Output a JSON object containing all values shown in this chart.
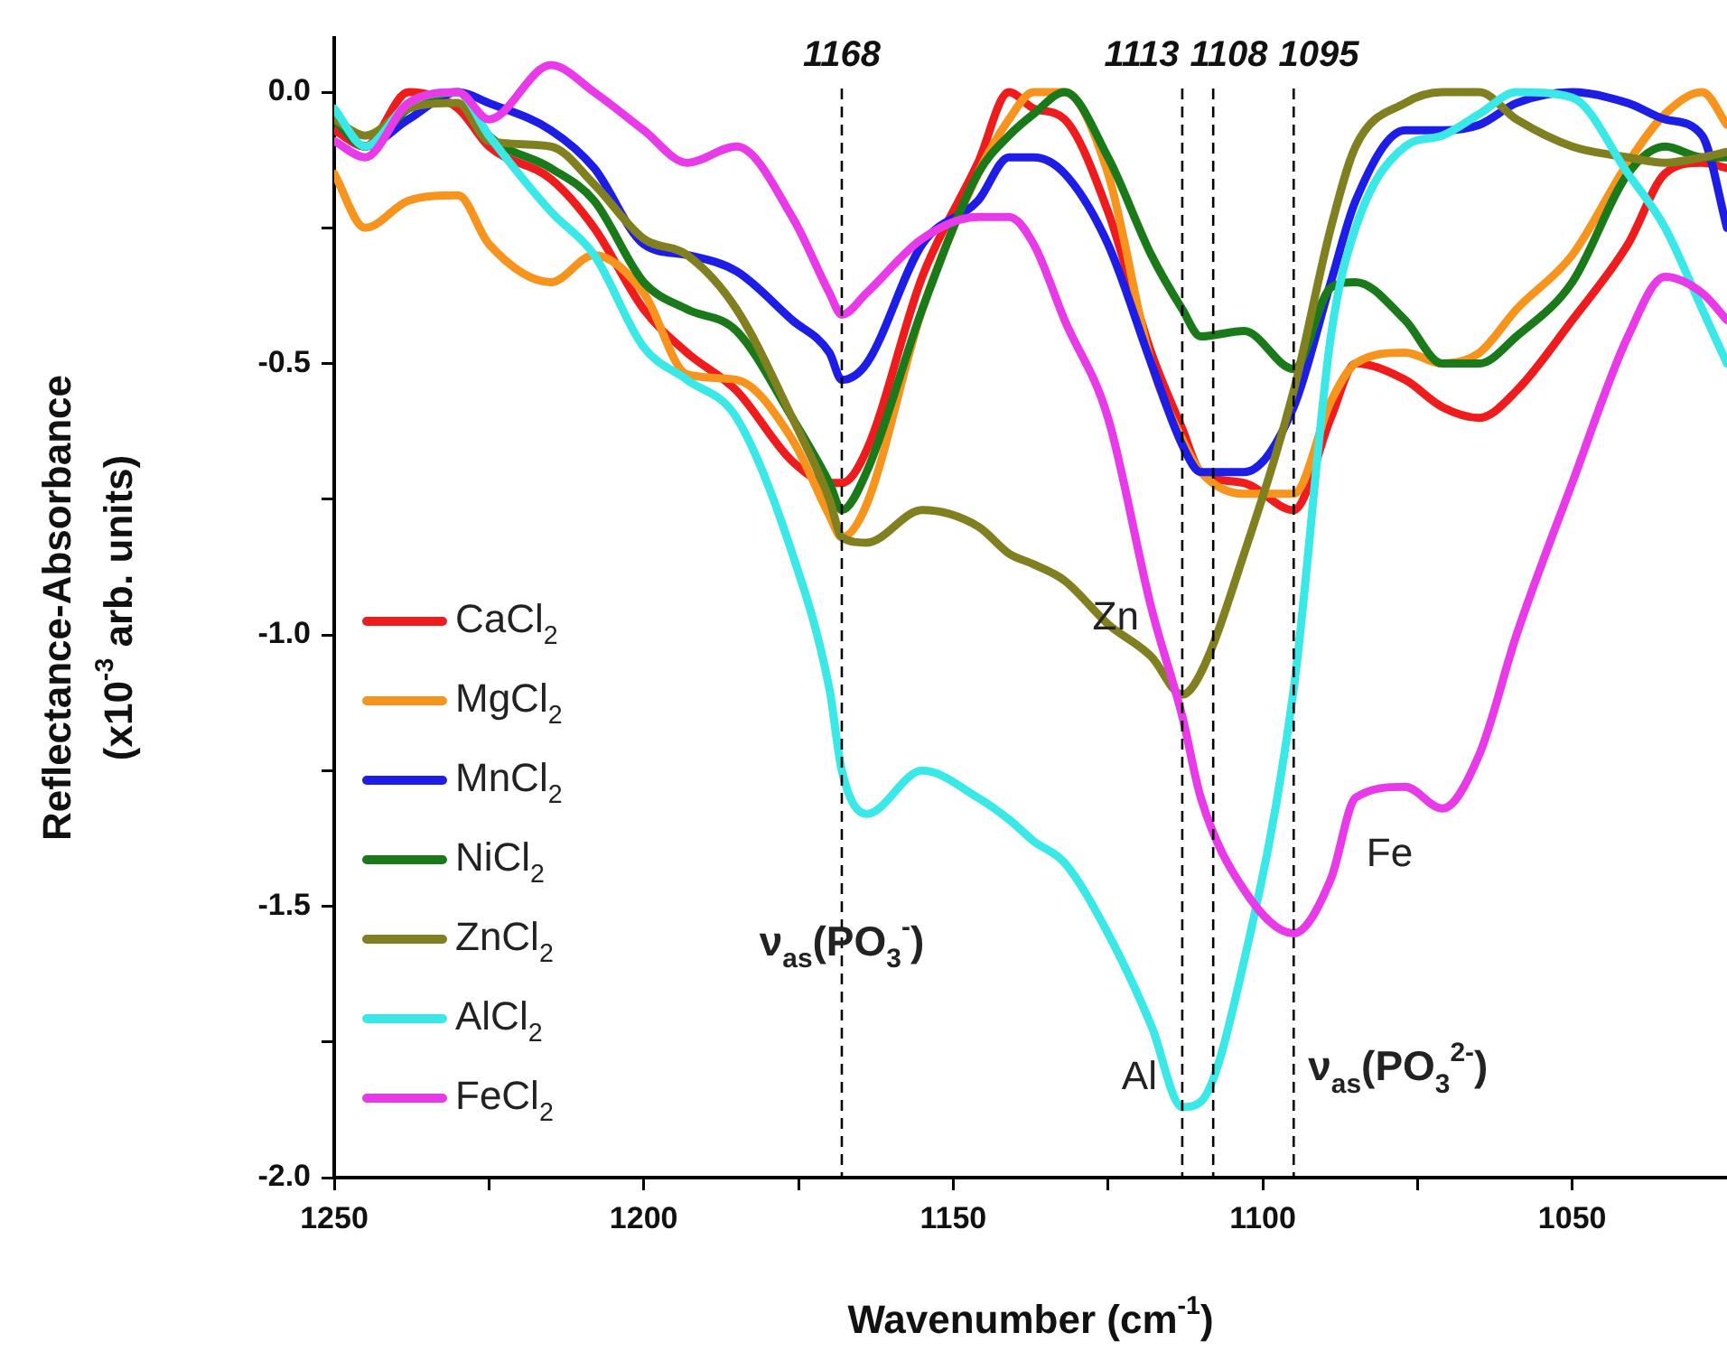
{
  "chart_data": {
    "type": "line",
    "xlabel": "Wavenumber (cm$^{-1}$)",
    "ylabel": "Reflectance-Absorbance\n(x10$^{-3}$ arb. units)",
    "x": [
      1250,
      1245,
      1238,
      1230,
      1225,
      1215,
      1208,
      1200,
      1193,
      1185,
      1176,
      1170,
      1168,
      1164,
      1155,
      1146,
      1141,
      1137,
      1132,
      1125,
      1118,
      1113,
      1110,
      1103,
      1095,
      1089,
      1085,
      1077,
      1071,
      1065,
      1059,
      1050,
      1041,
      1035,
      1029,
      1025
    ],
    "series": [
      {
        "name": "CaCl$_{2}$",
        "color": "#ee1c1c",
        "values": [
          -0.07,
          -0.1,
          0.0,
          -0.03,
          -0.1,
          -0.16,
          -0.25,
          -0.4,
          -0.48,
          -0.55,
          -0.68,
          -0.72,
          -0.72,
          -0.66,
          -0.34,
          -0.13,
          0.0,
          -0.03,
          -0.05,
          -0.22,
          -0.48,
          -0.62,
          -0.7,
          -0.72,
          -0.77,
          -0.6,
          -0.5,
          -0.53,
          -0.58,
          -0.6,
          -0.55,
          -0.42,
          -0.28,
          -0.15,
          -0.13,
          -0.14
        ]
      },
      {
        "name": "MgCl$_{2}$",
        "color": "#f7941d",
        "values": [
          -0.15,
          -0.25,
          -0.2,
          -0.19,
          -0.28,
          -0.35,
          -0.3,
          -0.37,
          -0.52,
          -0.53,
          -0.64,
          -0.78,
          -0.82,
          -0.76,
          -0.4,
          -0.15,
          -0.05,
          0.0,
          0.0,
          -0.15,
          -0.5,
          -0.64,
          -0.7,
          -0.74,
          -0.74,
          -0.57,
          -0.5,
          -0.48,
          -0.5,
          -0.48,
          -0.4,
          -0.3,
          -0.13,
          -0.04,
          0.0,
          -0.06
        ]
      },
      {
        "name": "MnCl$_{2}$",
        "color": "#1d1de6",
        "values": [
          -0.05,
          -0.1,
          -0.05,
          0.0,
          -0.02,
          -0.07,
          -0.14,
          -0.28,
          -0.3,
          -0.33,
          -0.42,
          -0.48,
          -0.53,
          -0.5,
          -0.28,
          -0.2,
          -0.12,
          -0.12,
          -0.15,
          -0.28,
          -0.5,
          -0.65,
          -0.7,
          -0.7,
          -0.58,
          -0.35,
          -0.2,
          -0.07,
          -0.07,
          -0.06,
          -0.02,
          0.0,
          -0.02,
          -0.05,
          -0.08,
          -0.25
        ]
      },
      {
        "name": "NiCl$_{2}$",
        "color": "#1a7a1a",
        "values": [
          -0.05,
          -0.1,
          -0.03,
          0.0,
          -0.08,
          -0.14,
          -0.2,
          -0.35,
          -0.4,
          -0.44,
          -0.6,
          -0.72,
          -0.77,
          -0.7,
          -0.4,
          -0.15,
          -0.08,
          -0.04,
          0.0,
          -0.12,
          -0.3,
          -0.4,
          -0.45,
          -0.44,
          -0.51,
          -0.36,
          -0.35,
          -0.42,
          -0.5,
          -0.5,
          -0.45,
          -0.35,
          -0.15,
          -0.1,
          -0.12,
          -0.12
        ]
      },
      {
        "name": "ZnCl$_{2}$",
        "color": "#808020",
        "values": [
          -0.05,
          -0.08,
          -0.03,
          -0.02,
          -0.09,
          -0.1,
          -0.17,
          -0.27,
          -0.3,
          -0.4,
          -0.6,
          -0.75,
          -0.82,
          -0.83,
          -0.77,
          -0.8,
          -0.85,
          -0.87,
          -0.9,
          -0.98,
          -1.04,
          -1.11,
          -1.07,
          -0.85,
          -0.55,
          -0.25,
          -0.1,
          -0.02,
          0.0,
          0.0,
          -0.05,
          -0.1,
          -0.12,
          -0.13,
          -0.12,
          -0.11
        ]
      },
      {
        "name": "AlCl$_{2}$",
        "color": "#3ae8e8",
        "values": [
          -0.03,
          -0.1,
          -0.02,
          0.0,
          -0.08,
          -0.22,
          -0.3,
          -0.47,
          -0.53,
          -0.6,
          -0.85,
          -1.1,
          -1.25,
          -1.33,
          -1.25,
          -1.3,
          -1.34,
          -1.38,
          -1.42,
          -1.55,
          -1.72,
          -1.87,
          -1.86,
          -1.6,
          -1.1,
          -0.45,
          -0.25,
          -0.1,
          -0.08,
          -0.04,
          0.0,
          -0.01,
          -0.15,
          -0.25,
          -0.4,
          -0.5
        ]
      },
      {
        "name": "FeCl$_{2}$",
        "color": "#e83ae8",
        "values": [
          -0.09,
          -0.12,
          -0.02,
          0.0,
          -0.05,
          0.05,
          0.0,
          -0.07,
          -0.13,
          -0.1,
          -0.23,
          -0.37,
          -0.41,
          -0.37,
          -0.27,
          -0.23,
          -0.23,
          -0.28,
          -0.42,
          -0.6,
          -0.95,
          -1.15,
          -1.3,
          -1.47,
          -1.55,
          -1.45,
          -1.3,
          -1.28,
          -1.32,
          -1.22,
          -1.0,
          -0.72,
          -0.45,
          -0.34,
          -0.37,
          -0.42
        ]
      }
    ],
    "xlim": [
      1250,
      1025
    ],
    "xticks": [
      1250,
      {
        "value": 1225,
        "label": null
      },
      1200,
      {
        "value": 1175,
        "label": null
      },
      1150,
      {
        "value": 1125,
        "label": null
      },
      1100,
      {
        "value": 1075,
        "label": null
      },
      1050
    ],
    "ylim": [
      -2.0,
      0.1
    ],
    "yticks": [
      {
        "value": -2,
        "label": "-2.0"
      },
      {
        "value": -1.75,
        "label": null
      },
      -1.5,
      {
        "value": -1.25,
        "label": null
      },
      {
        "value": -1,
        "label": "-1.0"
      },
      {
        "value": -0.75,
        "label": null
      },
      -0.5,
      {
        "value": -0.25,
        "label": null
      },
      {
        "value": 0,
        "label": "0.0"
      }
    ],
    "ref_lines": [
      {
        "axis": "x",
        "value": 1168,
        "label": "1168",
        "line_style": "dashed"
      },
      {
        "axis": "x",
        "value": 1113,
        "label": "1113",
        "line_style": "dashed"
      },
      {
        "axis": "x",
        "value": 1108,
        "label": "1108",
        "line_style": "dashed"
      },
      {
        "axis": "x",
        "value": 1095,
        "label": "1095",
        "line_style": "dashed"
      }
    ],
    "annotations": [
      {
        "text": "Zn",
        "x": 1113,
        "y": -1.11
      },
      {
        "text": "Al",
        "x": 1113,
        "y": -1.87
      },
      {
        "text": "Fe",
        "x": 1085,
        "y": -1.3
      },
      {
        "text": "ν$_{as}$(PO$_{3}$$^{-}$)",
        "x": 1168,
        "y": -1.57
      },
      {
        "text": "ν$_{as}$(PO$_{3}$$^{2-}$)",
        "x": 1095,
        "y": -1.8
      }
    ],
    "grid": false,
    "legend": "bottom left",
    "line_style": "solid"
  }
}
